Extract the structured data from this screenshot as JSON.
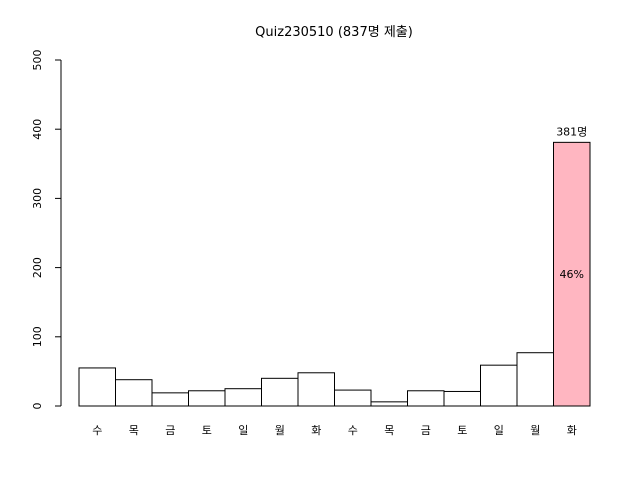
{
  "chart_data": {
    "type": "bar",
    "title": "Quiz230510 (837명 제출)",
    "xlabel": "",
    "ylabel": "",
    "ylim": [
      0,
      500
    ],
    "yticks": [
      0,
      100,
      200,
      300,
      400,
      500
    ],
    "categories": [
      "수",
      "목",
      "금",
      "토",
      "일",
      "월",
      "화",
      "수",
      "목",
      "금",
      "토",
      "일",
      "월",
      "화"
    ],
    "values": [
      55,
      38,
      19,
      22,
      25,
      40,
      48,
      23,
      6,
      22,
      21,
      59,
      77,
      381
    ],
    "highlight_index": 13,
    "highlight_top_label": "381명",
    "highlight_inner_label": "46%",
    "colors": {
      "bar_fill": "#ffffff",
      "bar_stroke": "#000000",
      "highlight_fill": "#ffb6c1"
    },
    "grid": false,
    "legend": "none"
  }
}
